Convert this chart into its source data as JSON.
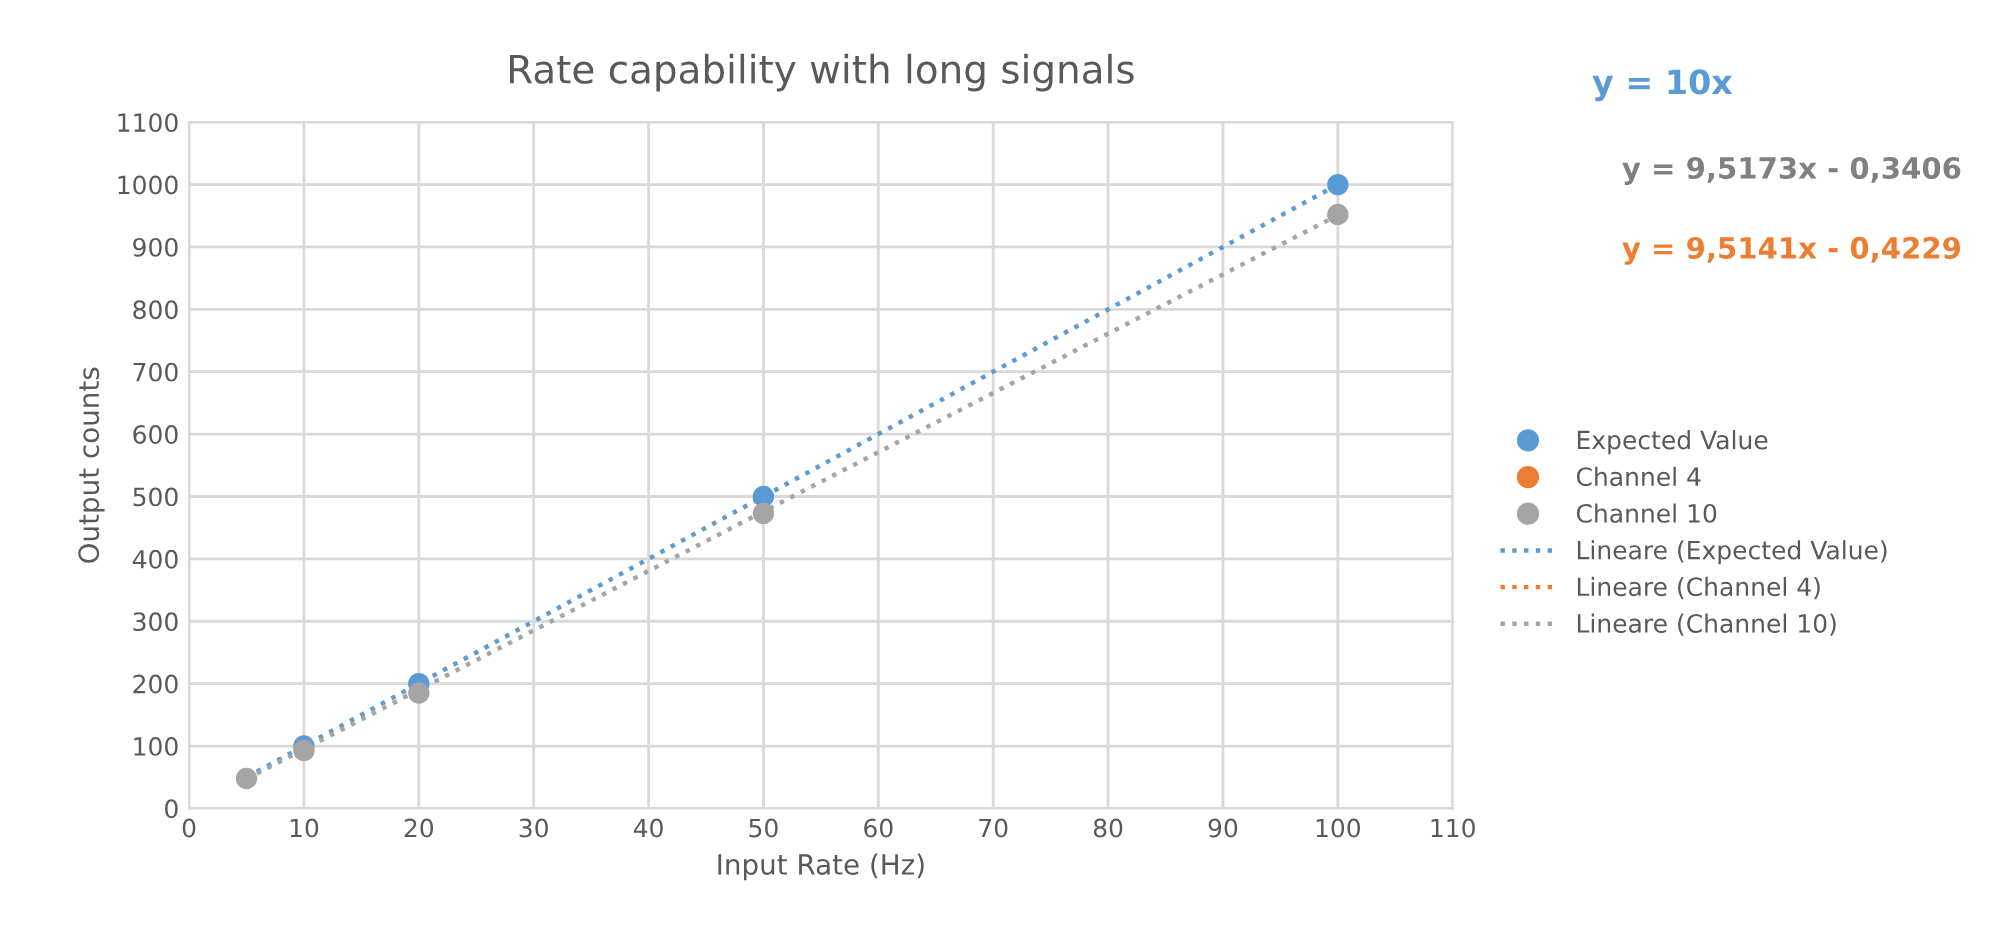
{
  "chart_data": {
    "type": "scatter",
    "title": "Rate capability with long signals",
    "xlabel": "Input Rate (Hz)",
    "ylabel": "Output counts",
    "x": [
      5,
      10,
      20,
      50,
      100
    ],
    "series": [
      {
        "name": "Expected Value",
        "color": "#5b9bd5",
        "values": [
          null,
          100,
          200,
          500,
          1000
        ]
      },
      {
        "name": "Channel 4",
        "color": "#ed7d31",
        "values": [
          null,
          null,
          null,
          null,
          null
        ]
      },
      {
        "name": "Channel 10",
        "color": "#a5a5a5",
        "values": [
          48,
          93,
          185,
          473,
          952
        ]
      },
      {
        "name": "Lineare (Expected Value)",
        "type": "line",
        "color": "#5b9bd5",
        "values": [
          50,
          100,
          200,
          500,
          1000
        ],
        "line_style": "dotted",
        "marker": "none"
      },
      {
        "name": "Lineare (Channel 4)",
        "type": "line",
        "color": "#ed7d31",
        "values": [
          null,
          null,
          null,
          null,
          null
        ],
        "line_style": "dotted",
        "marker": "none"
      },
      {
        "name": "Lineare (Channel 10)",
        "type": "line",
        "color": "#a5a5a5",
        "values": [
          47,
          95,
          190,
          476,
          951
        ],
        "line_style": "dotted",
        "marker": "none"
      }
    ],
    "annotations": [
      "y = 10x",
      "y = 9,5173x - 0,3406",
      "y = 9,5141x - 0,4229"
    ],
    "xlim": [
      0,
      110
    ],
    "xticks": [
      0,
      10,
      20,
      30,
      40,
      50,
      60,
      70,
      80,
      90,
      100,
      110
    ],
    "ylim": [
      0,
      1100
    ],
    "yticks": [
      0,
      100,
      200,
      300,
      400,
      500,
      600,
      700,
      800,
      900,
      1000,
      1100
    ],
    "grid": true,
    "legend": "right",
    "marker": "circle"
  }
}
